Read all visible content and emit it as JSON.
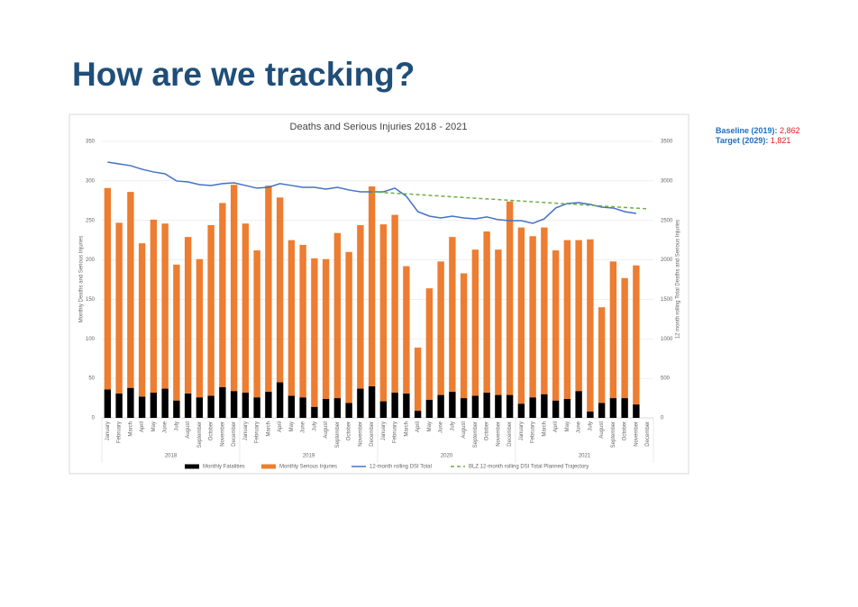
{
  "slide": {
    "title": "How are we tracking?",
    "notes": [
      {
        "label": "Baseline (2019):",
        "value": "2,862"
      },
      {
        "label": "Target (2029):",
        "value": "1,821"
      }
    ]
  },
  "chart_data": {
    "type": "bar",
    "title": "Deaths and Serious Injuries 2018 - 2021",
    "y_label": "Monthly Deaths and Serious Injuries",
    "y2_label": "12 month rolling Total Deaths and Serious Injuries",
    "categories": [
      "January",
      "February",
      "March",
      "April",
      "May",
      "June",
      "July",
      "August",
      "September",
      "October",
      "November",
      "December",
      "January",
      "February",
      "March",
      "April",
      "May",
      "June",
      "July",
      "August",
      "September",
      "October",
      "November",
      "December",
      "January",
      "February",
      "March",
      "April",
      "May",
      "June",
      "July",
      "August",
      "September",
      "October",
      "November",
      "December",
      "January",
      "February",
      "March",
      "April",
      "May",
      "June",
      "July",
      "August",
      "September",
      "October",
      "November",
      "December"
    ],
    "year_groups": [
      "2018",
      "2019",
      "2020",
      "2021"
    ],
    "ylim": [
      0,
      350
    ],
    "yticks": [
      0,
      50,
      100,
      150,
      200,
      250,
      300,
      350
    ],
    "y2lim": [
      0,
      3500
    ],
    "y2ticks": [
      0,
      500,
      1000,
      1500,
      2000,
      2500,
      3000,
      3500
    ],
    "grid": true,
    "stacked": true,
    "legend": "bottom",
    "series": [
      {
        "name": "Monthly Fatalities",
        "type": "bar",
        "color": "#000000",
        "values": [
          36,
          31,
          38,
          27,
          32,
          37,
          22,
          31,
          26,
          28,
          39,
          34,
          32,
          26,
          33,
          45,
          28,
          26,
          14,
          24,
          25,
          19,
          37,
          40,
          21,
          32,
          31,
          9,
          23,
          29,
          33,
          25,
          28,
          32,
          29,
          29,
          18,
          26,
          30,
          22,
          24,
          34,
          8,
          19,
          25,
          25,
          17,
          null
        ]
      },
      {
        "name": "Monthly Serious Injuries",
        "type": "bar",
        "color": "#ed7d31",
        "values": [
          255,
          216,
          248,
          194,
          219,
          209,
          172,
          198,
          175,
          216,
          233,
          261,
          214,
          186,
          261,
          234,
          197,
          193,
          188,
          177,
          209,
          191,
          207,
          253,
          224,
          225,
          161,
          80,
          141,
          169,
          196,
          158,
          185,
          204,
          184,
          245,
          223,
          204,
          211,
          190,
          201,
          191,
          218,
          121,
          173,
          152,
          176,
          null
        ]
      },
      {
        "name": "12-month rolling DSI Total",
        "type": "line",
        "axis": "y2",
        "color": "#4472c4",
        "values": [
          3238,
          3215,
          3193,
          3147,
          3113,
          3090,
          2999,
          2987,
          2953,
          2942,
          2965,
          2976,
          2942,
          2908,
          2919,
          2965,
          2942,
          2919,
          2919,
          2896,
          2919,
          2885,
          2862,
          2862,
          2862,
          2908,
          2805,
          2611,
          2554,
          2531,
          2554,
          2531,
          2520,
          2543,
          2509,
          2497,
          2497,
          2463,
          2520,
          2657,
          2714,
          2725,
          2702,
          2668,
          2657,
          2611,
          2588,
          null
        ]
      },
      {
        "name": "BLZ 12-month rolling DSI Total Planned Trajectory",
        "type": "line",
        "axis": "y2",
        "color": "#70ad47",
        "dash": true,
        "values": [
          null,
          null,
          null,
          null,
          null,
          null,
          null,
          null,
          null,
          null,
          null,
          null,
          null,
          null,
          null,
          null,
          null,
          null,
          null,
          null,
          null,
          null,
          null,
          2862,
          2853,
          2844,
          2835,
          2826,
          2817,
          2808,
          2799,
          2790,
          2781,
          2772,
          2763,
          2754,
          2745,
          2736,
          2727,
          2718,
          2709,
          2700,
          2691,
          2682,
          2673,
          2664,
          2655,
          2646
        ]
      }
    ]
  }
}
